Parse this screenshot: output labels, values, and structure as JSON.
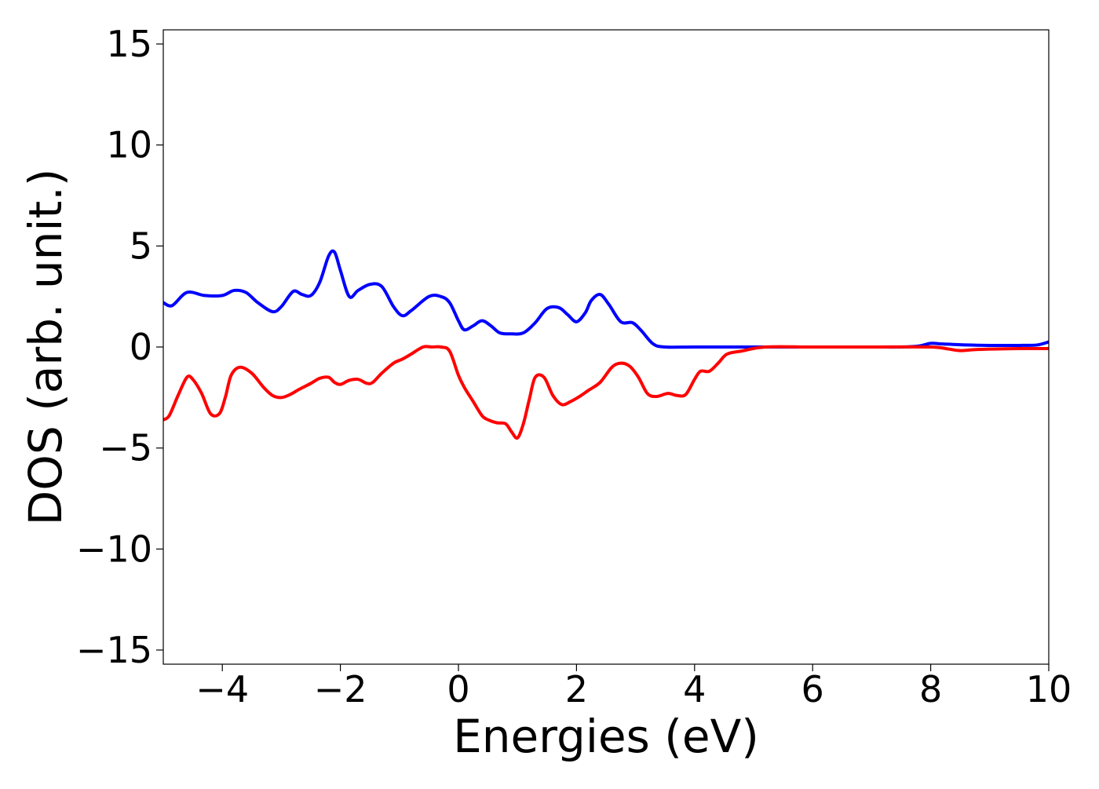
{
  "chart_data": {
    "type": "line",
    "title": "",
    "xlabel": "Energies (eV)",
    "ylabel": "DOS (arb. unit.)",
    "xlim": [
      -5,
      10
    ],
    "ylim": [
      -15.7,
      15.7
    ],
    "xticks": [
      -4,
      -2,
      0,
      2,
      4,
      6,
      8,
      10
    ],
    "yticks": [
      -15,
      -10,
      -5,
      0,
      5,
      10,
      15
    ],
    "xtick_labels": [
      "−4",
      "−2",
      "0",
      "2",
      "4",
      "6",
      "8",
      "10"
    ],
    "ytick_labels": [
      "−15",
      "−10",
      "−5",
      "0",
      "5",
      "10",
      "15"
    ],
    "grid": false,
    "legend": "none",
    "series": [
      {
        "color": "#0000ff",
        "x": [
          -5.0,
          -4.85,
          -4.6,
          -4.3,
          -4.0,
          -3.8,
          -3.6,
          -3.4,
          -3.15,
          -3.0,
          -2.8,
          -2.65,
          -2.5,
          -2.35,
          -2.2,
          -2.1,
          -2.0,
          -1.85,
          -1.7,
          -1.5,
          -1.3,
          -1.1,
          -0.95,
          -0.8,
          -0.5,
          -0.3,
          -0.15,
          0.0,
          0.1,
          0.25,
          0.4,
          0.55,
          0.7,
          0.9,
          1.1,
          1.3,
          1.5,
          1.7,
          1.85,
          2.0,
          2.15,
          2.25,
          2.4,
          2.55,
          2.75,
          2.95,
          3.1,
          3.3,
          3.5,
          4.0,
          5.0,
          6.0,
          7.0,
          7.5,
          7.8,
          8.0,
          8.2,
          8.6,
          9.0,
          9.5,
          9.8,
          10.0
        ],
        "y": [
          2.2,
          2.05,
          2.7,
          2.55,
          2.55,
          2.8,
          2.7,
          2.2,
          1.75,
          2.0,
          2.75,
          2.6,
          2.55,
          3.2,
          4.5,
          4.7,
          3.8,
          2.5,
          2.8,
          3.1,
          3.0,
          2.0,
          1.55,
          1.8,
          2.5,
          2.5,
          2.2,
          1.3,
          0.85,
          1.05,
          1.3,
          1.05,
          0.7,
          0.65,
          0.7,
          1.2,
          1.9,
          1.95,
          1.6,
          1.25,
          1.7,
          2.3,
          2.6,
          2.1,
          1.25,
          1.2,
          0.8,
          0.15,
          0.0,
          0.0,
          0.0,
          0.0,
          0.0,
          0.0,
          0.05,
          0.18,
          0.15,
          0.1,
          0.08,
          0.08,
          0.1,
          0.25
        ]
      },
      {
        "color": "#ff0000",
        "x": [
          -5.0,
          -4.9,
          -4.75,
          -4.6,
          -4.5,
          -4.35,
          -4.2,
          -4.05,
          -3.95,
          -3.85,
          -3.7,
          -3.5,
          -3.3,
          -3.15,
          -3.0,
          -2.85,
          -2.7,
          -2.5,
          -2.35,
          -2.2,
          -2.1,
          -2.0,
          -1.85,
          -1.7,
          -1.55,
          -1.45,
          -1.3,
          -1.1,
          -0.95,
          -0.8,
          -0.6,
          -0.45,
          -0.3,
          -0.15,
          0.0,
          0.1,
          0.25,
          0.4,
          0.5,
          0.65,
          0.8,
          0.9,
          1.0,
          1.1,
          1.2,
          1.3,
          1.45,
          1.6,
          1.75,
          1.9,
          2.05,
          2.2,
          2.4,
          2.6,
          2.75,
          2.9,
          3.05,
          3.2,
          3.35,
          3.55,
          3.7,
          3.85,
          4.0,
          4.1,
          4.25,
          4.4,
          4.55,
          4.8,
          5.2,
          6.0,
          7.0,
          8.0,
          8.3,
          8.5,
          8.8,
          9.5,
          10.0
        ],
        "y": [
          -3.6,
          -3.4,
          -2.4,
          -1.5,
          -1.6,
          -2.3,
          -3.3,
          -3.3,
          -2.5,
          -1.4,
          -1.0,
          -1.3,
          -2.0,
          -2.4,
          -2.5,
          -2.35,
          -2.1,
          -1.8,
          -1.55,
          -1.5,
          -1.75,
          -1.85,
          -1.65,
          -1.6,
          -1.8,
          -1.75,
          -1.3,
          -0.8,
          -0.6,
          -0.35,
          0.0,
          0.0,
          0.0,
          -0.2,
          -1.4,
          -2.0,
          -2.7,
          -3.4,
          -3.6,
          -3.75,
          -3.8,
          -4.2,
          -4.5,
          -3.8,
          -2.6,
          -1.5,
          -1.5,
          -2.4,
          -2.85,
          -2.7,
          -2.45,
          -2.15,
          -1.75,
          -1.0,
          -0.8,
          -0.95,
          -1.5,
          -2.3,
          -2.45,
          -2.3,
          -2.4,
          -2.35,
          -1.6,
          -1.2,
          -1.2,
          -0.8,
          -0.35,
          -0.2,
          0.0,
          0.0,
          0.0,
          0.0,
          -0.1,
          -0.18,
          -0.12,
          -0.08,
          -0.08
        ]
      }
    ]
  }
}
